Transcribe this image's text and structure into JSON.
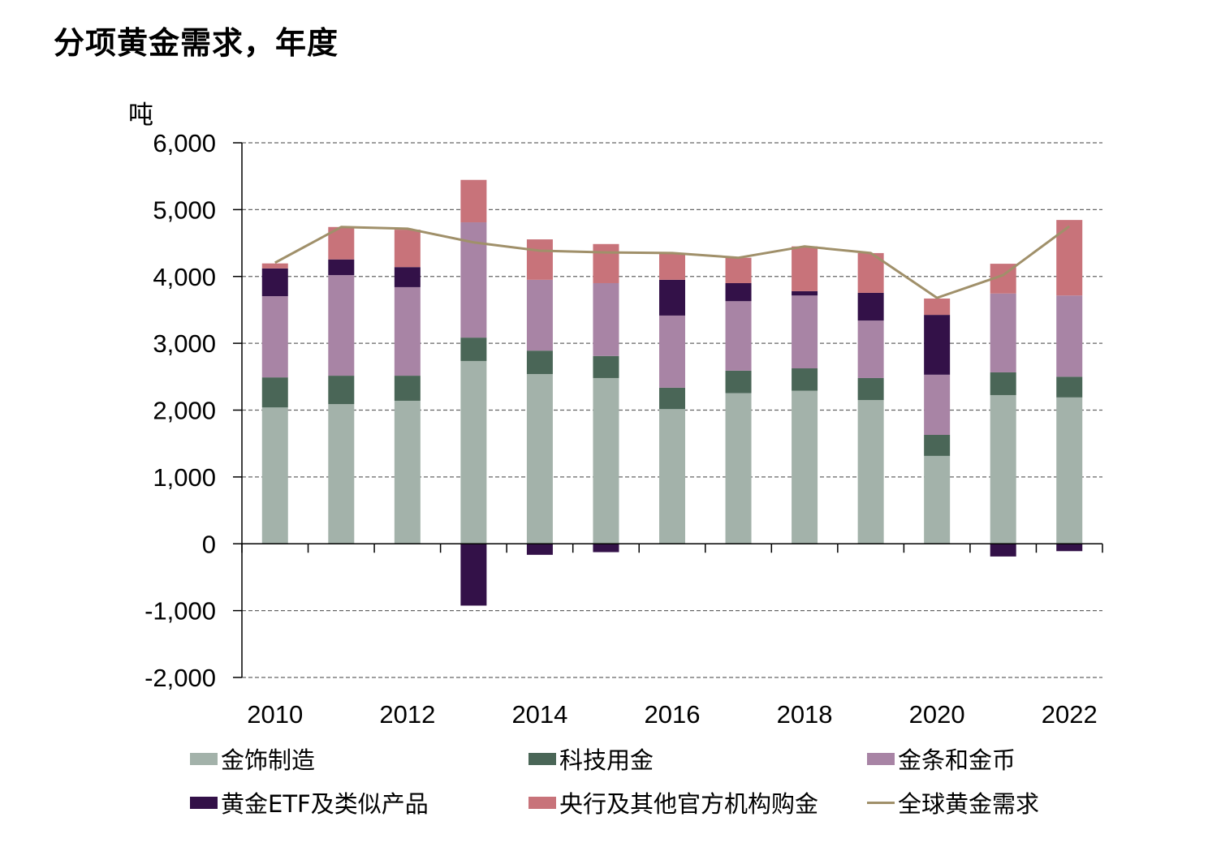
{
  "title": "分项黄金需求，年度",
  "chart_data": {
    "type": "bar",
    "stacked": true,
    "title": "分项黄金需求，年度",
    "ylabel": "吨",
    "xlabel": "",
    "ylim": [
      -2000,
      6000
    ],
    "yticks": [
      6000,
      5000,
      4000,
      3000,
      2000,
      1000,
      0,
      -1000,
      -2000
    ],
    "ytick_labels": [
      "6,000",
      "5,000",
      "4,000",
      "3,000",
      "2,000",
      "1,000",
      "0",
      "-1,000",
      "-2,000"
    ],
    "grid": true,
    "categories": [
      "2010",
      "2011",
      "2012",
      "2013",
      "2014",
      "2015",
      "2016",
      "2017",
      "2018",
      "2019",
      "2020",
      "2021",
      "2022"
    ],
    "xtick_labels": [
      "2010",
      "",
      "2012",
      "",
      "2014",
      "",
      "2016",
      "",
      "2018",
      "",
      "2020",
      "",
      "2022"
    ],
    "series": [
      {
        "name": "金饰制造",
        "kind": "bar",
        "color": "#A3B2AA",
        "values": [
          2040,
          2090,
          2140,
          2735,
          2540,
          2480,
          2015,
          2255,
          2290,
          2150,
          1315,
          2225,
          2190
        ]
      },
      {
        "name": "科技用金",
        "kind": "bar",
        "color": "#4A6657",
        "values": [
          450,
          425,
          375,
          350,
          350,
          330,
          320,
          335,
          335,
          330,
          315,
          340,
          310
        ]
      },
      {
        "name": "金条和金币",
        "kind": "bar",
        "color": "#A884A5",
        "values": [
          1215,
          1505,
          1325,
          1725,
          1060,
          1090,
          1080,
          1040,
          1090,
          860,
          900,
          1180,
          1215
        ]
      },
      {
        "name": "黄金ETF及类似产品",
        "kind": "bar",
        "color": "#331148",
        "values": [
          415,
          235,
          300,
          -925,
          -165,
          -125,
          535,
          270,
          65,
          415,
          895,
          -190,
          -110
        ]
      },
      {
        "name": "央行及其他官方机构购金",
        "kind": "bar",
        "color": "#C8737A",
        "values": [
          75,
          485,
          560,
          635,
          605,
          585,
          400,
          380,
          670,
          595,
          245,
          445,
          1130
        ]
      },
      {
        "name": "全球黄金需求",
        "kind": "line",
        "color": "#A0906A",
        "values": [
          4205,
          4740,
          4715,
          4510,
          4385,
          4360,
          4350,
          4280,
          4450,
          4350,
          3680,
          4020,
          4750
        ]
      }
    ],
    "legend_position": "bottom"
  },
  "legend": [
    {
      "label": "金饰制造",
      "color": "#A3B2AA",
      "kind": "box"
    },
    {
      "label": "科技用金",
      "color": "#4A6657",
      "kind": "box"
    },
    {
      "label": "金条和金币",
      "color": "#A884A5",
      "kind": "box"
    },
    {
      "label": "黄金ETF及类似产品",
      "color": "#331148",
      "kind": "box"
    },
    {
      "label": "央行及其他官方机构购金",
      "color": "#C8737A",
      "kind": "box"
    },
    {
      "label": "全球黄金需求",
      "color": "#A0906A",
      "kind": "line"
    }
  ]
}
